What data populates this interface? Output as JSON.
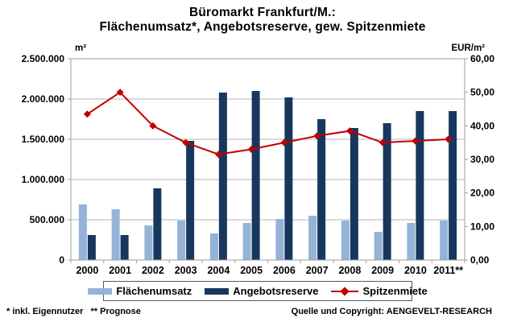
{
  "title": {
    "line1": "Büromarkt Frankfurt/M.:",
    "line2": "Flächenumsatz*, Angebotsreserve, gew. Spitzenmiete"
  },
  "chart_data": {
    "type": "bar",
    "subtype": "grouped-bars-with-line-overlay",
    "grid": "horizontal",
    "legend_position": "bottom",
    "categories": [
      "2000",
      "2001",
      "2002",
      "2003",
      "2004",
      "2005",
      "2006",
      "2007",
      "2008",
      "2009",
      "2010",
      "2011**"
    ],
    "series": [
      {
        "name": "Flächenumsatz",
        "chart_type": "bar",
        "axis": "left",
        "color": "#95B3D7",
        "values": [
          690000,
          630000,
          430000,
          490000,
          330000,
          460000,
          510000,
          550000,
          490000,
          350000,
          460000,
          490000
        ]
      },
      {
        "name": "Angebotsreserve",
        "chart_type": "bar",
        "axis": "left",
        "color": "#17375E",
        "values": [
          310000,
          310000,
          890000,
          1480000,
          2080000,
          2100000,
          2020000,
          1750000,
          1640000,
          1700000,
          1850000,
          1850000
        ]
      },
      {
        "name": "Spitzenmiete",
        "chart_type": "line",
        "axis": "right",
        "color": "#C00000",
        "marker": "diamond",
        "values": [
          43.5,
          50.0,
          40.0,
          35.0,
          31.5,
          33.0,
          35.0,
          37.0,
          38.5,
          35.0,
          35.5,
          36.0
        ]
      }
    ],
    "left_axis": {
      "unit": "m²",
      "min": 0,
      "max": 2500000,
      "step": 500000,
      "tick_labels": [
        "2.500.000",
        "2.000.000",
        "1.500.000",
        "1.000.000",
        "500.000",
        "0"
      ]
    },
    "right_axis": {
      "unit": "EUR/m²",
      "min": 0,
      "max": 60,
      "step": 10,
      "tick_labels": [
        "60,00",
        "50,00",
        "40,00",
        "30,00",
        "20,00",
        "10,00",
        "0,00"
      ]
    }
  },
  "footnotes": {
    "left": "* inkl. Eigennutzer   ** Prognose",
    "right": "Quelle und Copyright: AENGEVELT-RESEARCH"
  },
  "colors": {
    "background": "#FFFFFF",
    "text": "#000000",
    "grid": "#B5B5B5",
    "frame": "#9C9C9C",
    "legend_border": "#595959"
  }
}
